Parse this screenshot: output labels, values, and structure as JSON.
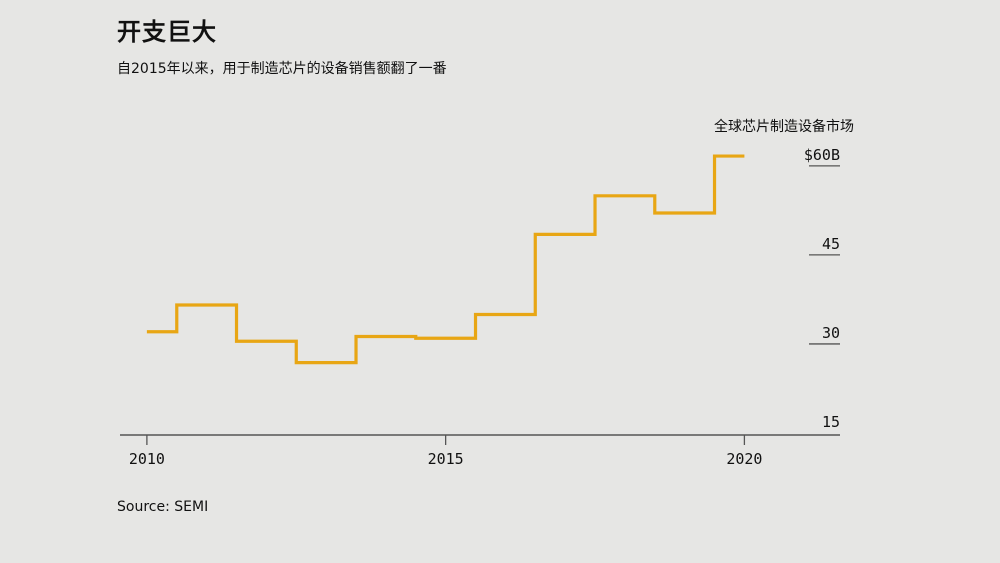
{
  "header": {
    "title": "开支巨大",
    "subtitle": "自2015年以来，用于制造芯片的设备销售额翻了一番"
  },
  "footer": {
    "source": "Source: SEMI"
  },
  "colors": {
    "line": "#e8a614",
    "axis": "#555555",
    "background": "#e6e6e4"
  },
  "chart_data": {
    "type": "line",
    "step": true,
    "series_label": "全球芯片制造设备市场",
    "x_ticks": [
      2010,
      2015,
      2020
    ],
    "x_tick_labels": [
      "2010",
      "2015",
      "2020"
    ],
    "y_ticks": [
      15,
      30,
      45,
      60
    ],
    "y_tick_labels": [
      "15",
      "30",
      "45",
      "$60B"
    ],
    "xlim": [
      2009.55,
      2021.6
    ],
    "ylim": [
      12.8,
      62
    ],
    "grid": false,
    "legend": "none",
    "series": [
      {
        "name": "全球芯片制造设备市场",
        "x": [
          2010,
          2011,
          2012,
          2013,
          2014,
          2015,
          2016,
          2017,
          2018,
          2019,
          2020
        ],
        "values": [
          30.2,
          34.7,
          28.6,
          25.0,
          29.4,
          29.1,
          33.1,
          46.6,
          53.1,
          50.2,
          59.8
        ]
      }
    ]
  }
}
